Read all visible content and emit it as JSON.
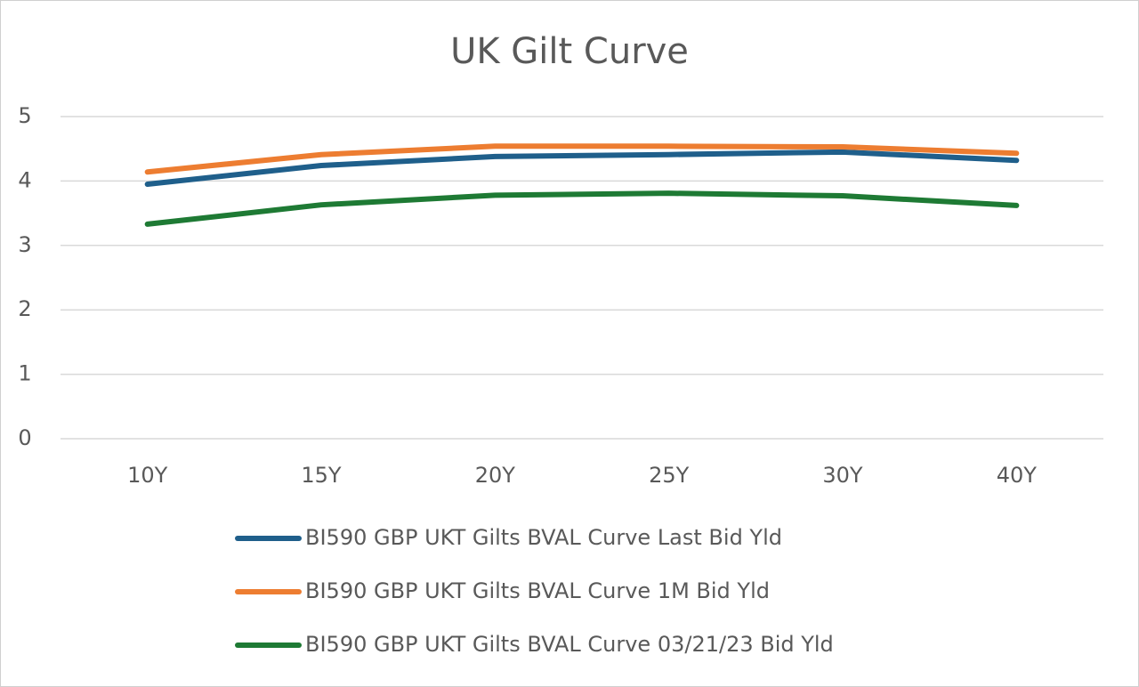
{
  "chart_data": {
    "type": "line",
    "title": "UK Gilt Curve",
    "categories": [
      "10Y",
      "15Y",
      "20Y",
      "25Y",
      "30Y",
      "40Y"
    ],
    "series": [
      {
        "name": "BI590 GBP UKT Gilts BVAL Curve Last Bid Yld",
        "color": "#1f5f8b",
        "values": [
          3.95,
          4.24,
          4.38,
          4.41,
          4.45,
          4.32
        ]
      },
      {
        "name": "BI590 GBP UKT Gilts BVAL Curve 1M Bid Yld",
        "color": "#ed7d31",
        "values": [
          4.14,
          4.41,
          4.54,
          4.54,
          4.53,
          4.43
        ]
      },
      {
        "name": "BI590 GBP UKT Gilts BVAL Curve 03/21/23 Bid Yld",
        "color": "#1e7a34",
        "values": [
          3.33,
          3.63,
          3.78,
          3.81,
          3.77,
          3.62
        ]
      }
    ],
    "ylim": [
      0,
      5
    ],
    "yticks": [
      0,
      1,
      2,
      3,
      4,
      5
    ],
    "grid": true,
    "legend": "bottom"
  }
}
